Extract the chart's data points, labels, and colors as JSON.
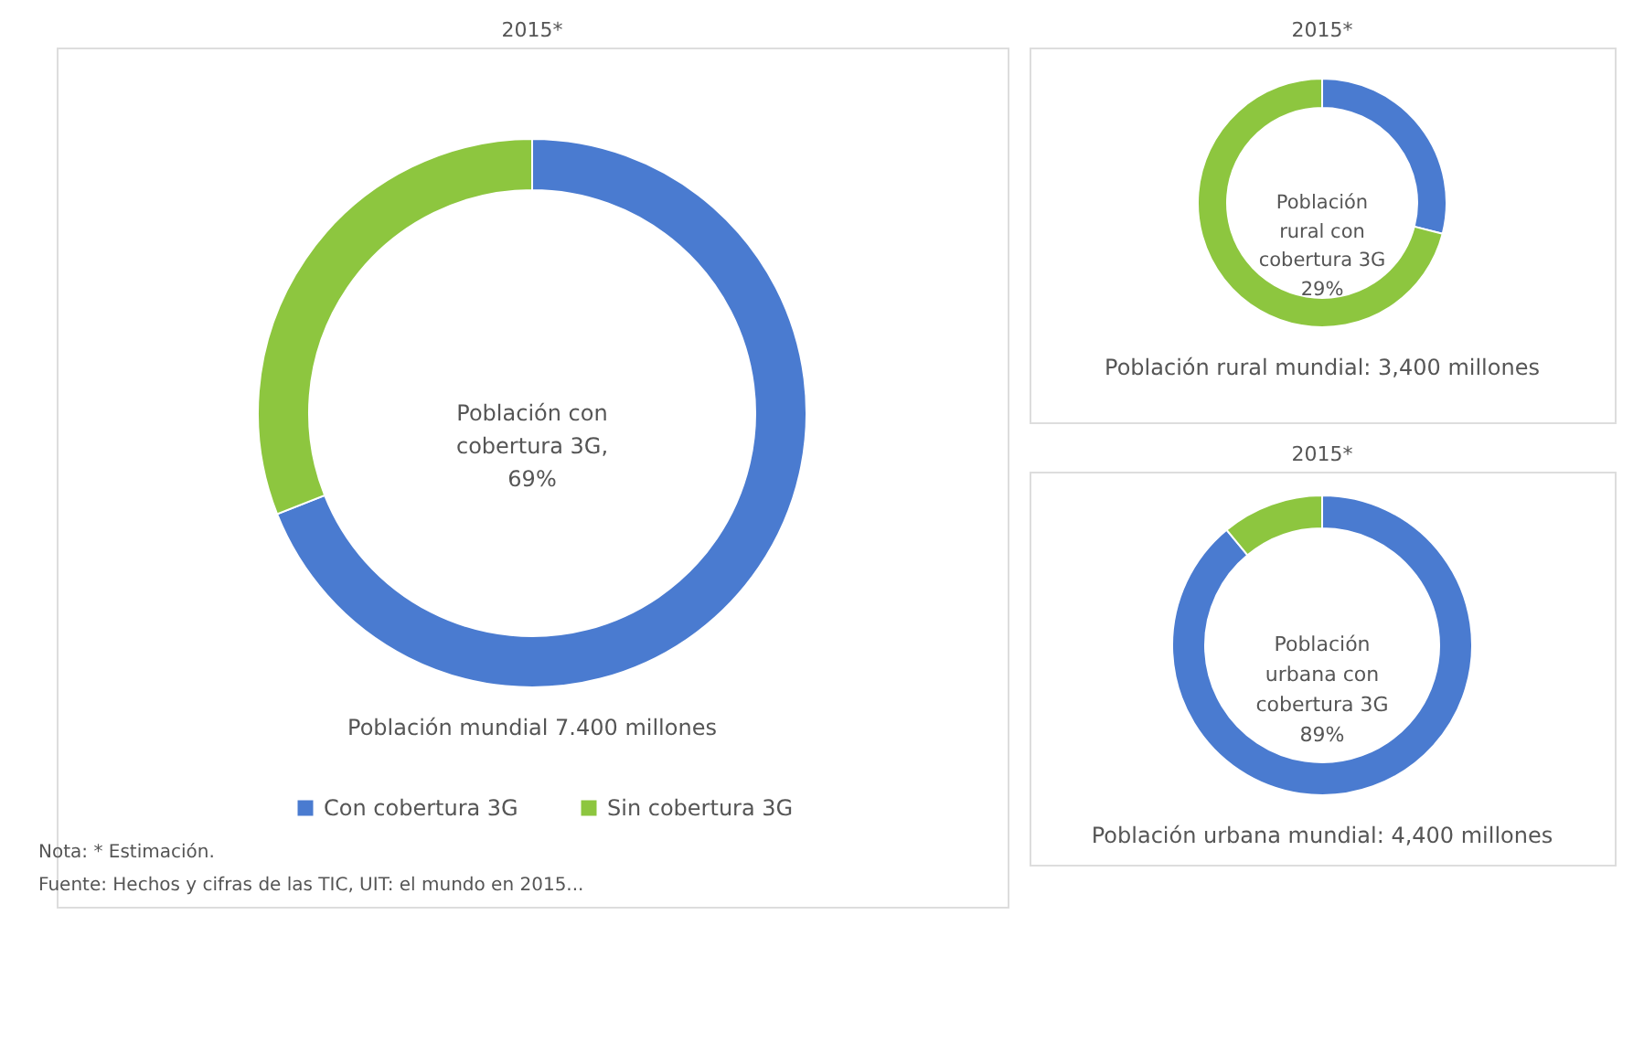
{
  "chart_data": [
    {
      "type": "donut",
      "title": "2015*",
      "categories": [
        "Con cobertura 3G",
        "Sin cobertura 3G"
      ],
      "values": [
        69,
        31
      ],
      "colors": [
        "#4a7bd0",
        "#8dc63f"
      ],
      "legend": "bottom",
      "annotations": [
        "Población con\ncobertura 3G,\n69%",
        "Población mundial 7.400 millones",
        "Nota: * Estimación.",
        "Fuente: Hechos y cifras de las TIC, UIT: el mundo en 2015..."
      ]
    },
    {
      "type": "donut",
      "title": "2015*",
      "categories": [
        null,
        null
      ],
      "values": [
        29,
        71
      ],
      "colors": [
        "#4a7bd0",
        "#8dc63f"
      ],
      "annotations": [
        "Población\nrural con\ncobertura 3G\n29%",
        "Población rural mundial: 3,400 millones"
      ]
    },
    {
      "type": "donut",
      "title": "2015*",
      "categories": [
        null,
        null
      ],
      "values": [
        89,
        11
      ],
      "colors": [
        "#4a7bd0",
        "#8dc63f"
      ],
      "annotations": [
        "Población\nurbana con\ncobertura 3G\n89%",
        "Población urbana mundial: 4,400 millones"
      ]
    }
  ]
}
